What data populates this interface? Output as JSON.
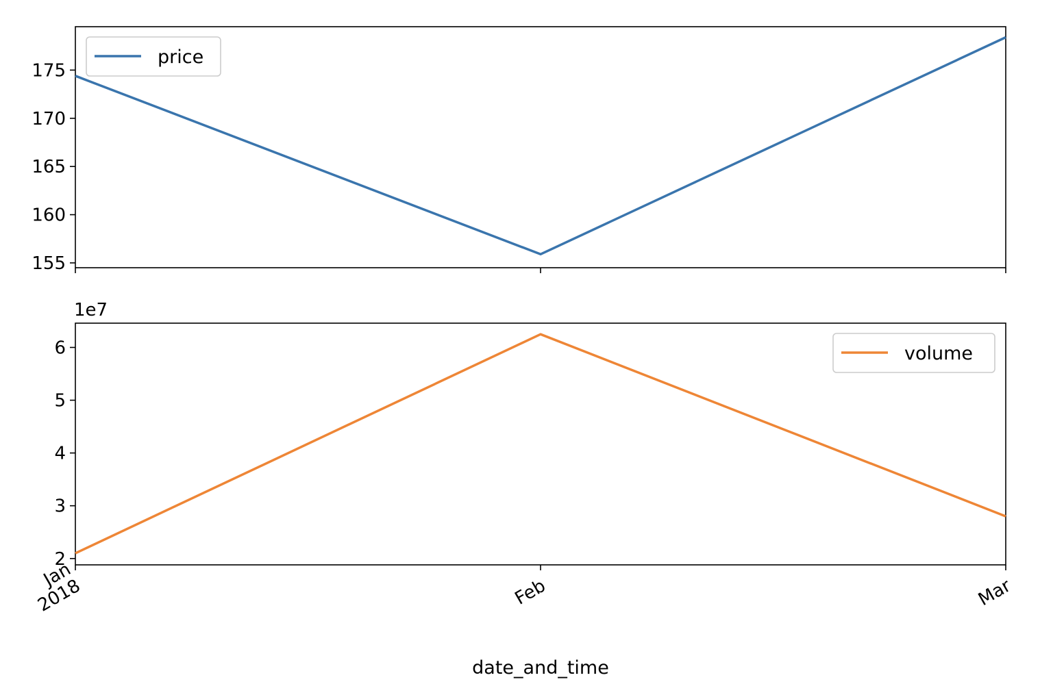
{
  "chart_data": [
    {
      "type": "line",
      "xlabel": "",
      "ylabel": "",
      "x": [
        "2018-01",
        "2018-02",
        "2018-03"
      ],
      "ylim": [
        154.5,
        179.5
      ],
      "yticks": [
        155,
        160,
        165,
        170,
        175
      ],
      "grid": false,
      "legend_position": "top-left",
      "series": [
        {
          "name": "price",
          "color": "#3a75ad",
          "values": [
            174.4,
            155.9,
            178.4
          ]
        }
      ]
    },
    {
      "type": "line",
      "xlabel": "date_and_time",
      "ylabel": "",
      "x": [
        "2018-01",
        "2018-02",
        "2018-03"
      ],
      "xtick_labels": [
        [
          "Jan",
          "2018"
        ],
        [
          "Feb"
        ],
        [
          "Mar"
        ]
      ],
      "ylim": [
        1.88,
        6.46
      ],
      "yticks": [
        2,
        3,
        4,
        5,
        6
      ],
      "y_offset_label": "1e7",
      "grid": false,
      "legend_position": "top-right",
      "series": [
        {
          "name": "volume",
          "color": "#ee8636",
          "values": [
            2.1,
            6.25,
            2.8
          ]
        }
      ]
    }
  ]
}
